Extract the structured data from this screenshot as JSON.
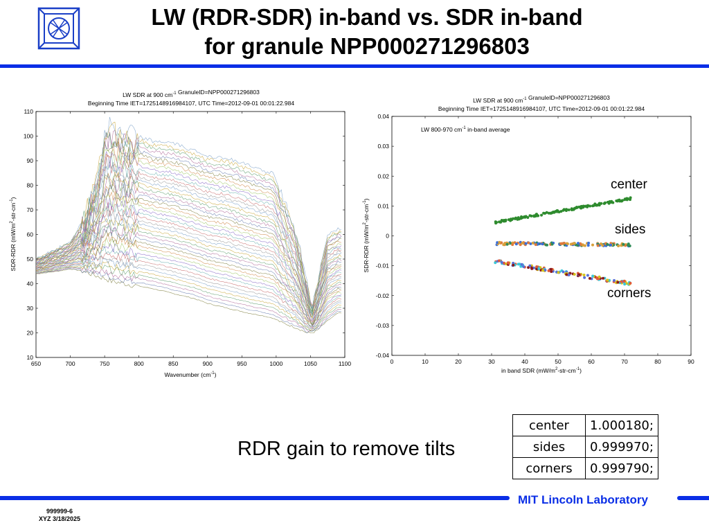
{
  "slide": {
    "title_line1": "LW (RDR-SDR) in-band vs. SDR in-band",
    "title_line2": "for granule NPP000271296803",
    "gain_label": "RDR gain to remove tilts",
    "gain_table": [
      {
        "key": "center",
        "value": "1.000180;"
      },
      {
        "key": "sides",
        "value": "0.999970;"
      },
      {
        "key": "corners",
        "value": "0.999790;"
      }
    ],
    "brand": "MIT Lincoln Laboratory",
    "doc_id": "999999-6",
    "doc_date": "XYZ 3/18/2025",
    "colors": {
      "accent": "#0a2ee6",
      "center": "#2e8b2e",
      "sides_a": "#e07a3a",
      "sides_b": "#2e8b57",
      "corners_a": "#d4c21a",
      "corners_b": "#8b1a1a",
      "corners_c": "#5a6fd8"
    }
  },
  "chart_data": [
    {
      "type": "line",
      "title": "LW SDR at 900 cm-1 GranuleID=NPP000271296803",
      "subtitle": "Beginning Time IET=1725148916984107, UTC Time=2012-09-01 00:01:22.984",
      "xlabel": "Wavenumber (cm-1)",
      "ylabel": "SDR-RDR (mW/m2-str-cm-1)",
      "xlim": [
        650,
        1100
      ],
      "ylim": [
        10,
        110
      ],
      "xticks": [
        650,
        700,
        750,
        800,
        850,
        900,
        950,
        1000,
        1050,
        1100
      ],
      "yticks": [
        10,
        20,
        30,
        40,
        50,
        60,
        70,
        80,
        90,
        100,
        110
      ],
      "grid": false,
      "series_description_points": {
        "x": [
          650,
          680,
          700,
          720,
          740,
          752,
          760,
          780,
          800,
          820,
          850,
          880,
          900,
          930,
          960,
          980,
          995,
          1010,
          1030,
          1045,
          1052,
          1060,
          1075,
          1090,
          1095
        ],
        "upper_envelope": [
          50,
          54,
          57,
          66,
          84,
          104,
          103,
          101,
          100,
          98,
          97,
          94,
          92,
          91,
          88,
          86,
          85,
          75,
          60,
          40,
          30,
          40,
          60,
          62,
          62
        ],
        "lower_envelope": [
          44,
          45,
          46,
          45,
          43,
          42,
          41,
          40,
          39,
          38,
          36,
          34,
          32,
          30,
          28,
          27,
          26,
          24,
          22,
          20,
          20,
          21,
          25,
          28,
          28
        ]
      }
    },
    {
      "type": "scatter",
      "title": "LW SDR at 900 cm-1 GranuleID=NPP000271296803",
      "subtitle": "Beginning Time IET=1725148916984107, UTC Time=2012-09-01 00:01:22.984",
      "annotation": "LW 800-970 cm-1 in-band average",
      "xlabel": "in band SDR (mW/m2-str-cm-1)",
      "ylabel": "SDR-RDR (mW/m2-str-cm-1)",
      "xlim": [
        0,
        90
      ],
      "ylim": [
        -0.04,
        0.04
      ],
      "xticks": [
        0,
        10,
        20,
        30,
        40,
        50,
        60,
        70,
        80,
        90
      ],
      "yticks": [
        0.04,
        0.03,
        0.02,
        0.01,
        0,
        -0.01,
        -0.02,
        -0.03,
        -0.04
      ],
      "yticklabels": [
        "0.04",
        "0.03",
        "0.02",
        "0.01",
        "0",
        "-0.01",
        "-0.02",
        "-0.03",
        "-0.04"
      ],
      "grid": false,
      "labels": [
        "center",
        "sides",
        "corners"
      ],
      "series": [
        {
          "name": "center",
          "x": [
            31,
            72
          ],
          "y": [
            0.0045,
            0.0125
          ]
        },
        {
          "name": "sides",
          "x": [
            31,
            72
          ],
          "y": [
            -0.0025,
            -0.003
          ]
        },
        {
          "name": "corners",
          "x": [
            31,
            72
          ],
          "y": [
            -0.0085,
            -0.016
          ]
        }
      ]
    }
  ]
}
